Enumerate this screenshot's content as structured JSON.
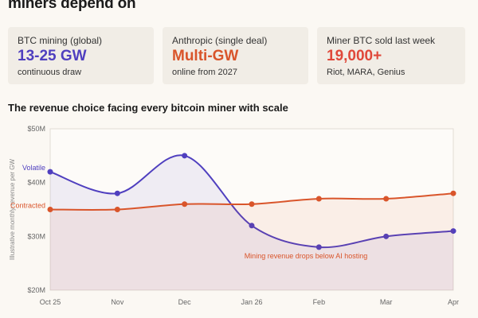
{
  "header": {
    "title": "miners depend on"
  },
  "stats": [
    {
      "label": "BTC mining (global)",
      "value": "13-25 GW",
      "sub": "continuous draw",
      "color": "#4f3fbf"
    },
    {
      "label": "Anthropic (single deal)",
      "value": "Multi-GW",
      "sub": "online from 2027",
      "color": "#d9552b"
    },
    {
      "label": "Miner BTC sold last week",
      "value": "19,000+",
      "sub": "Riot, MARA, Genius",
      "color": "#e0483a"
    }
  ],
  "chart_title": "The revenue choice facing every bitcoin miner with scale",
  "chart_data": {
    "type": "line",
    "categories": [
      "Oct 25",
      "Nov",
      "Dec",
      "Jan 26",
      "Feb",
      "Mar",
      "Apr"
    ],
    "ylabel": "Illustrative monthly revenue per GW",
    "ylim": [
      20,
      50
    ],
    "yticks": [
      "$20M",
      "$30M",
      "$40M",
      "$50M"
    ],
    "grid": false,
    "series": [
      {
        "name": "Volatile",
        "color": "#4f3fbf",
        "x": [
          0,
          1,
          2,
          3,
          4,
          5,
          6
        ],
        "values": [
          42,
          38,
          45,
          32,
          28,
          30,
          31
        ]
      },
      {
        "name": "Contracted",
        "color": "#d9552b",
        "x": [
          0,
          1,
          2,
          3,
          4,
          5,
          6
        ],
        "values": [
          35,
          35,
          36,
          36,
          37,
          37,
          38
        ]
      }
    ],
    "annotation": {
      "text": "Mining revenue drops below AI hosting",
      "color": "#d9552b"
    }
  }
}
